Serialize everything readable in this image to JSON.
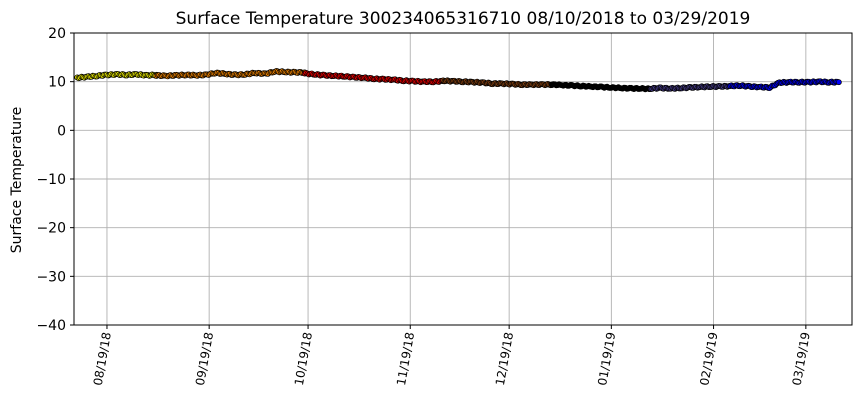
{
  "chart_data": {
    "type": "scatter",
    "title": "Surface Temperature 300234065316710  08/10/2018 to 03/29/2019",
    "xlabel": "",
    "ylabel": "Surface Temperature",
    "xlim": [
      "2018-08-09",
      "2019-04-02"
    ],
    "ylim": [
      -40,
      20
    ],
    "yticks": [
      20,
      10,
      0,
      -10,
      -20,
      -30,
      -40
    ],
    "ytick_labels": [
      "20",
      "10",
      "0",
      "−10",
      "−20",
      "−30",
      "−40"
    ],
    "xticks": [
      "2018-08-19",
      "2018-09-19",
      "2018-10-19",
      "2018-11-19",
      "2018-12-19",
      "2019-01-19",
      "2019-02-19",
      "2019-03-19"
    ],
    "xtick_labels": [
      "08/19/18",
      "09/19/18",
      "10/19/18",
      "11/19/18",
      "12/19/18",
      "01/19/19",
      "02/19/19",
      "03/19/19"
    ],
    "grid": true,
    "marker_edge_color": "#000000",
    "series": [
      {
        "color": "#ffff00",
        "x": [
          "2018-08-10",
          "2018-08-13",
          "2018-08-16",
          "2018-08-19",
          "2018-08-22",
          "2018-08-25",
          "2018-08-28",
          "2018-08-31",
          "2018-09-03"
        ],
        "y": [
          10.8,
          11.0,
          11.2,
          11.4,
          11.5,
          11.4,
          11.5,
          11.3,
          11.4
        ]
      },
      {
        "color": "#ff8c00",
        "x": [
          "2018-09-03",
          "2018-09-06",
          "2018-09-09",
          "2018-09-12",
          "2018-09-15",
          "2018-09-18",
          "2018-09-21",
          "2018-09-24",
          "2018-09-27",
          "2018-09-30",
          "2018-10-03",
          "2018-10-06",
          "2018-10-09",
          "2018-10-12",
          "2018-10-15",
          "2018-10-18"
        ],
        "y": [
          11.3,
          11.2,
          11.3,
          11.4,
          11.3,
          11.4,
          11.8,
          11.6,
          11.4,
          11.5,
          11.8,
          11.6,
          12.1,
          12.0,
          11.9,
          11.9
        ]
      },
      {
        "color": "#ff0000",
        "x": [
          "2018-10-18",
          "2018-10-21",
          "2018-10-24",
          "2018-10-27",
          "2018-10-30",
          "2018-11-02",
          "2018-11-05",
          "2018-11-08",
          "2018-11-11",
          "2018-11-14",
          "2018-11-17",
          "2018-11-20",
          "2018-11-23",
          "2018-11-26",
          "2018-11-29"
        ],
        "y": [
          11.7,
          11.5,
          11.3,
          11.2,
          11.1,
          10.9,
          10.8,
          10.6,
          10.5,
          10.4,
          10.2,
          10.1,
          10.0,
          10.0,
          10.1
        ]
      },
      {
        "color": "#8b4513",
        "x": [
          "2018-11-29",
          "2018-12-02",
          "2018-12-05",
          "2018-12-08",
          "2018-12-11",
          "2018-12-14",
          "2018-12-17",
          "2018-12-20",
          "2018-12-23",
          "2018-12-26",
          "2018-12-29",
          "2019-01-01"
        ],
        "y": [
          10.2,
          10.1,
          10.0,
          9.9,
          9.8,
          9.6,
          9.6,
          9.5,
          9.4,
          9.4,
          9.4,
          9.4
        ]
      },
      {
        "color": "#000000",
        "x": [
          "2019-01-01",
          "2019-01-04",
          "2019-01-07",
          "2019-01-10",
          "2019-01-13",
          "2019-01-16",
          "2019-01-19",
          "2019-01-22",
          "2019-01-25",
          "2019-01-28",
          "2019-01-31"
        ],
        "y": [
          9.4,
          9.3,
          9.2,
          9.1,
          9.0,
          8.9,
          8.8,
          8.7,
          8.6,
          8.6,
          8.5
        ]
      },
      {
        "color": "#483d8b",
        "x": [
          "2019-01-31",
          "2019-02-03",
          "2019-02-06",
          "2019-02-09",
          "2019-02-12",
          "2019-02-15",
          "2019-02-18",
          "2019-02-21",
          "2019-02-24"
        ],
        "y": [
          8.6,
          8.7,
          8.6,
          8.7,
          8.8,
          8.9,
          9.0,
          9.0,
          9.1
        ]
      },
      {
        "color": "#0000ff",
        "x": [
          "2019-02-24",
          "2019-02-27",
          "2019-03-02",
          "2019-03-05",
          "2019-03-08",
          "2019-03-11",
          "2019-03-14",
          "2019-03-17",
          "2019-03-20",
          "2019-03-23",
          "2019-03-26",
          "2019-03-29"
        ],
        "y": [
          9.1,
          9.2,
          9.0,
          8.9,
          8.8,
          9.8,
          9.9,
          9.9,
          9.9,
          10.0,
          9.9,
          9.9
        ]
      }
    ]
  }
}
